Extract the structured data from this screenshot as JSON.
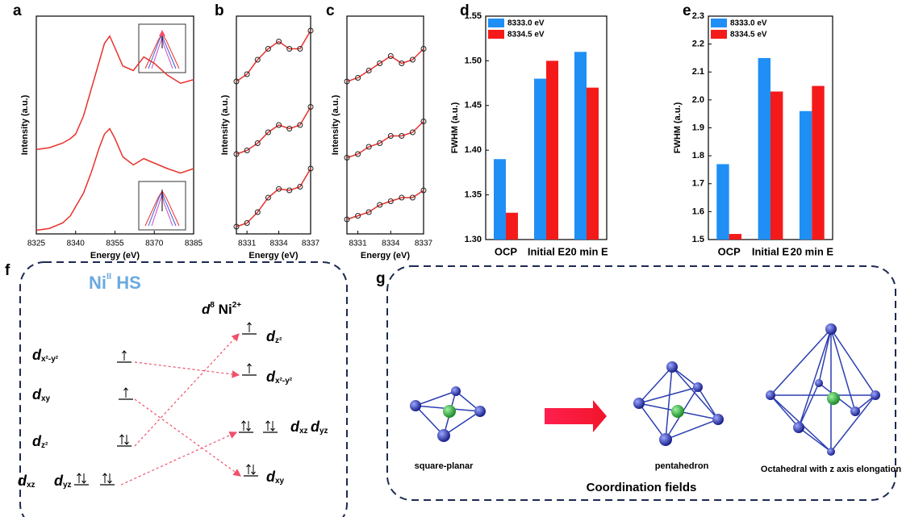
{
  "panel_labels": [
    "a",
    "b",
    "c",
    "d",
    "e",
    "f",
    "g"
  ],
  "chart_data": [
    {
      "type": "line",
      "xlabel": "Energy (eV)",
      "ylabel": "Intensity (a.u.)",
      "x": [
        8325,
        8330,
        8335,
        8338,
        8340,
        8343,
        8346,
        8349,
        8351,
        8353,
        8355,
        8358,
        8362,
        8366,
        8370,
        8375,
        8380,
        8385
      ],
      "xlim": [
        8325,
        8385
      ],
      "xticks": [
        8325,
        8340,
        8355,
        8370,
        8385
      ],
      "ylim": [
        0,
        2.4
      ],
      "series": [
        {
          "color": "#e8322d",
          "values": [
            0.93,
            0.95,
            1.0,
            1.05,
            1.1,
            1.3,
            1.6,
            1.9,
            2.1,
            2.18,
            2.05,
            1.85,
            1.8,
            1.95,
            1.88,
            1.75,
            1.66,
            1.7
          ]
        },
        {
          "color": "#e8322d",
          "values": [
            0.04,
            0.06,
            0.12,
            0.2,
            0.3,
            0.45,
            0.68,
            0.95,
            1.1,
            1.16,
            1.05,
            0.85,
            0.76,
            0.83,
            0.78,
            0.72,
            0.67,
            0.72
          ]
        }
      ]
    },
    {
      "type": "line",
      "markers": true,
      "xlabel": "Energy (eV)",
      "ylabel": "Intensity (a.u.)",
      "x": [
        8330,
        8331,
        8332,
        8333,
        8334,
        8335,
        8336,
        8337
      ],
      "xlim": [
        8330,
        8337
      ],
      "xticks": [
        8331,
        8334,
        8337
      ],
      "ylim": [
        0,
        3
      ],
      "series": [
        {
          "color": "#e8322d",
          "values": [
            2.1,
            2.2,
            2.4,
            2.55,
            2.65,
            2.55,
            2.55,
            2.8
          ]
        },
        {
          "color": "#e8322d",
          "values": [
            1.1,
            1.15,
            1.25,
            1.4,
            1.5,
            1.45,
            1.5,
            1.75
          ]
        },
        {
          "color": "#e8322d",
          "values": [
            0.1,
            0.15,
            0.3,
            0.5,
            0.62,
            0.6,
            0.65,
            0.9
          ]
        }
      ]
    },
    {
      "type": "line",
      "markers": true,
      "xlabel": "Energy (eV)",
      "ylabel": "Intensity (a.u.)",
      "x": [
        8330,
        8331,
        8332,
        8333,
        8334,
        8335,
        8336,
        8337
      ],
      "xlim": [
        8330,
        8337
      ],
      "xticks": [
        8331,
        8334,
        8337
      ],
      "ylim": [
        0,
        3
      ],
      "series": [
        {
          "color": "#e8322d",
          "values": [
            2.1,
            2.15,
            2.25,
            2.35,
            2.45,
            2.35,
            2.4,
            2.55
          ]
        },
        {
          "color": "#e8322d",
          "values": [
            1.05,
            1.1,
            1.2,
            1.25,
            1.35,
            1.35,
            1.4,
            1.55
          ]
        },
        {
          "color": "#e8322d",
          "values": [
            0.2,
            0.25,
            0.3,
            0.4,
            0.45,
            0.5,
            0.5,
            0.6
          ]
        }
      ]
    },
    {
      "type": "bar",
      "ylabel": "FWHM (a.u.)",
      "categories": [
        "OCP",
        "Initial E",
        "20 min E"
      ],
      "ylim": [
        1.3,
        1.55
      ],
      "yticks": [
        {
          "value": 1.3,
          "label": "1.30"
        },
        1.35,
        {
          "value": 1.4,
          "label": "1.40"
        },
        1.45,
        {
          "value": 1.5,
          "label": "1.50"
        },
        1.55
      ],
      "legend": "top-left",
      "series": [
        {
          "name": "8333.0 eV",
          "color": "#1f8ff5",
          "values": [
            1.39,
            1.48,
            1.51
          ]
        },
        {
          "name": "8334.5 eV",
          "color": "#f51a1a",
          "values": [
            1.33,
            1.5,
            1.47
          ]
        }
      ]
    },
    {
      "type": "bar",
      "ylabel": "FWHM (a.u.)",
      "categories": [
        "OCP",
        "Initial E",
        "20 min E"
      ],
      "ylim": [
        1.5,
        2.3
      ],
      "yticks": [
        1.5,
        1.6,
        1.7,
        1.8,
        1.9,
        {
          "value": 2.0,
          "label": "2.0"
        },
        2.1,
        2.2,
        2.3
      ],
      "legend": "top-left",
      "series": [
        {
          "name": "8333.0 eV",
          "color": "#1f8ff5",
          "values": [
            1.77,
            2.15,
            1.96
          ]
        },
        {
          "name": "8334.5 eV",
          "color": "#f51a1a",
          "values": [
            1.52,
            2.03,
            2.05
          ]
        }
      ]
    }
  ],
  "energy_diagram": {
    "title": [
      "Ni",
      "II",
      " HS"
    ],
    "config": [
      "d",
      "8",
      " Ni",
      "2+"
    ],
    "left_labels": [
      [
        "d",
        "x²-y²"
      ],
      [
        "d",
        "xy"
      ],
      [
        "d",
        "z²"
      ],
      [
        "d",
        "xz"
      ],
      [
        "d",
        "yz"
      ]
    ],
    "right_labels": [
      [
        "d",
        "z²"
      ],
      [
        "d",
        "x²-y²"
      ],
      [
        "d",
        "xz"
      ],
      [
        "d",
        "yz"
      ],
      [
        "d",
        "xy"
      ]
    ]
  },
  "coordination": {
    "title": "Coordination fields",
    "labels": [
      "square-planar",
      "pentahedron",
      "Octahedral with z axis elongation"
    ]
  }
}
